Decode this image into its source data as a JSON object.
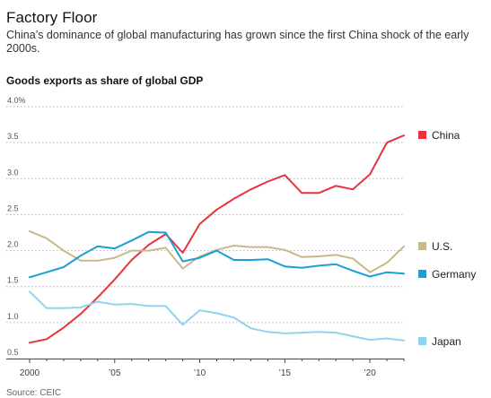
{
  "header": {
    "title": "Factory Floor",
    "subtitle": "China’s dominance of global manufacturing has grown since the first China shock of the early 2000s."
  },
  "chart_data": {
    "type": "line",
    "title": "Goods exports as share of global GDP",
    "x": [
      2000,
      2001,
      2002,
      2003,
      2004,
      2005,
      2006,
      2007,
      2008,
      2009,
      2010,
      2011,
      2012,
      2013,
      2014,
      2015,
      2016,
      2017,
      2018,
      2019,
      2020,
      2021,
      2022
    ],
    "series": [
      {
        "name": "China",
        "color": "#e8333d",
        "values": [
          0.72,
          0.77,
          0.93,
          1.12,
          1.35,
          1.6,
          1.87,
          2.08,
          2.23,
          1.97,
          2.37,
          2.57,
          2.72,
          2.85,
          2.96,
          3.05,
          2.8,
          2.8,
          2.9,
          2.85,
          3.06,
          3.5,
          3.6
        ]
      },
      {
        "name": "U.S.",
        "color": "#c8b98a",
        "values": [
          2.27,
          2.17,
          2.0,
          1.86,
          1.86,
          1.9,
          2.0,
          2.0,
          2.04,
          1.75,
          1.92,
          2.01,
          2.07,
          2.05,
          2.05,
          2.01,
          1.91,
          1.92,
          1.94,
          1.89,
          1.7,
          1.83,
          2.06
        ]
      },
      {
        "name": "Germany",
        "color": "#1a9fd6",
        "values": [
          1.63,
          1.7,
          1.77,
          1.93,
          2.06,
          2.03,
          2.14,
          2.26,
          2.25,
          1.85,
          1.9,
          2.0,
          1.87,
          1.87,
          1.88,
          1.78,
          1.76,
          1.79,
          1.81,
          1.72,
          1.64,
          1.7,
          1.68
        ]
      },
      {
        "name": "Japan",
        "color": "#8fd3f0",
        "values": [
          1.43,
          1.2,
          1.2,
          1.21,
          1.29,
          1.25,
          1.26,
          1.23,
          1.23,
          0.97,
          1.17,
          1.13,
          1.07,
          0.92,
          0.87,
          0.85,
          0.86,
          0.87,
          0.86,
          0.81,
          0.76,
          0.78,
          0.75
        ]
      }
    ],
    "ylim": [
      0.5,
      4.0
    ],
    "yticks": [
      "0.5",
      "1.0",
      "1.5",
      "2.0",
      "2.5",
      "3.0",
      "3.5",
      "4.0%"
    ],
    "xticks": [
      {
        "value": 2000,
        "label": "2000"
      },
      {
        "value": 2005,
        "label": "’05"
      },
      {
        "value": 2010,
        "label": "’10"
      },
      {
        "value": 2015,
        "label": "’15"
      },
      {
        "value": 2020,
        "label": "’20"
      }
    ],
    "grid": "horizontal-dotted",
    "legend": "right-end-labels",
    "source": "Source: CEIC"
  }
}
